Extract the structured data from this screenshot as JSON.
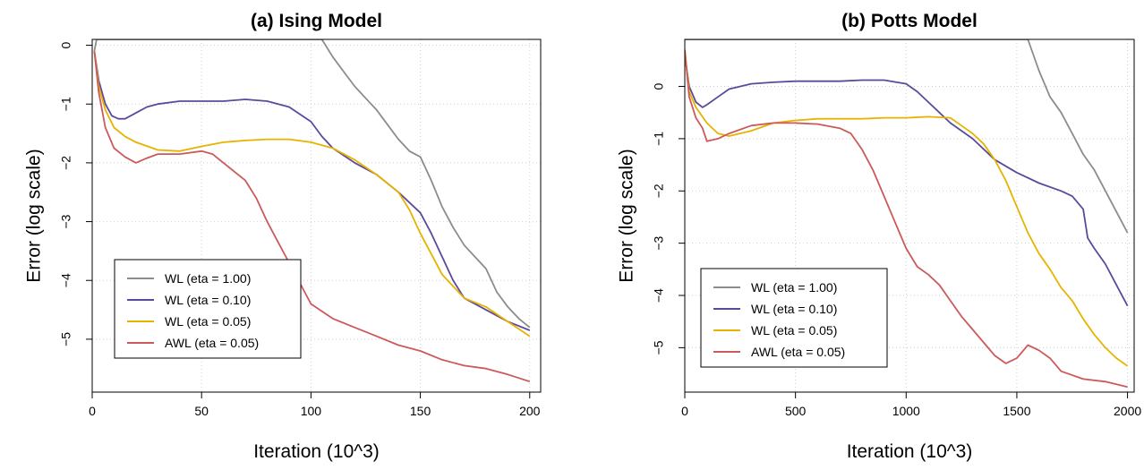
{
  "chart_data": [
    {
      "type": "line",
      "title": "(a) Ising Model",
      "xlabel": "Iteration (10^3)",
      "ylabel": "Error (log scale)",
      "xlim": [
        0,
        205
      ],
      "ylim": [
        -5.9,
        0.1
      ],
      "xticks": [
        0,
        50,
        100,
        150,
        200
      ],
      "yticks": [
        0,
        -1,
        -2,
        -3,
        -4,
        -5
      ],
      "grid": true,
      "legend_position": "bottom-left",
      "series": [
        {
          "name": "WL (eta = 1.00)",
          "color": "#8c8c8c",
          "x": [
            1,
            2,
            105,
            110,
            115,
            120,
            125,
            130,
            135,
            140,
            145,
            150,
            155,
            160,
            165,
            170,
            175,
            180,
            185,
            190,
            195,
            200
          ],
          "y": [
            -0.1,
            0.1,
            0.1,
            -0.2,
            -0.45,
            -0.7,
            -0.9,
            -1.1,
            -1.35,
            -1.6,
            -1.8,
            -1.9,
            -2.3,
            -2.75,
            -3.1,
            -3.4,
            -3.6,
            -3.8,
            -4.2,
            -4.45,
            -4.65,
            -4.8
          ]
        },
        {
          "name": "WL (eta = 0.10)",
          "color": "#5b4a9b",
          "x": [
            1,
            3,
            6,
            9,
            12,
            15,
            20,
            25,
            30,
            40,
            50,
            60,
            70,
            80,
            90,
            100,
            105,
            110,
            120,
            130,
            140,
            150,
            155,
            160,
            165,
            170,
            180,
            190,
            200
          ],
          "y": [
            -0.1,
            -0.6,
            -1.0,
            -1.2,
            -1.25,
            -1.25,
            -1.15,
            -1.05,
            -1.0,
            -0.95,
            -0.95,
            -0.95,
            -0.92,
            -0.95,
            -1.05,
            -1.3,
            -1.55,
            -1.75,
            -2.0,
            -2.2,
            -2.5,
            -2.85,
            -3.2,
            -3.6,
            -4.0,
            -4.3,
            -4.5,
            -4.7,
            -4.85
          ]
        },
        {
          "name": "WL (eta = 0.05)",
          "color": "#e7b300",
          "x": [
            1,
            3,
            6,
            10,
            15,
            20,
            30,
            40,
            50,
            60,
            70,
            80,
            90,
            100,
            110,
            120,
            130,
            140,
            145,
            150,
            155,
            160,
            165,
            170,
            180,
            190,
            200
          ],
          "y": [
            -0.1,
            -0.7,
            -1.1,
            -1.4,
            -1.55,
            -1.65,
            -1.78,
            -1.8,
            -1.72,
            -1.65,
            -1.62,
            -1.6,
            -1.6,
            -1.65,
            -1.75,
            -1.95,
            -2.2,
            -2.5,
            -2.8,
            -3.2,
            -3.55,
            -3.9,
            -4.1,
            -4.3,
            -4.45,
            -4.7,
            -4.95
          ]
        },
        {
          "name": "AWL (eta = 0.05)",
          "color": "#cc5a5a",
          "x": [
            1,
            3,
            6,
            10,
            15,
            20,
            25,
            30,
            40,
            50,
            55,
            60,
            65,
            70,
            75,
            80,
            85,
            90,
            95,
            100,
            110,
            120,
            130,
            140,
            150,
            160,
            170,
            180,
            190,
            200
          ],
          "y": [
            -0.1,
            -0.8,
            -1.4,
            -1.75,
            -1.9,
            -2.0,
            -1.92,
            -1.85,
            -1.85,
            -1.8,
            -1.85,
            -2.0,
            -2.15,
            -2.3,
            -2.6,
            -3.0,
            -3.35,
            -3.7,
            -4.05,
            -4.4,
            -4.65,
            -4.8,
            -4.95,
            -5.1,
            -5.2,
            -5.35,
            -5.45,
            -5.5,
            -5.6,
            -5.72
          ]
        }
      ]
    },
    {
      "type": "line",
      "title": "(b) Potts Model",
      "xlabel": "Iteration (10^3)",
      "ylabel": "Error (log scale)",
      "xlim": [
        0,
        2030
      ],
      "ylim": [
        -5.85,
        0.9
      ],
      "xticks": [
        0,
        500,
        1000,
        1500,
        2000
      ],
      "yticks": [
        0,
        -1,
        -2,
        -3,
        -4,
        -5
      ],
      "grid": true,
      "legend_position": "bottom-left",
      "series": [
        {
          "name": "WL (eta = 1.00)",
          "color": "#8c8c8c",
          "x": [
            0,
            1550,
            1600,
            1650,
            1700,
            1750,
            1800,
            1850,
            1900,
            1950,
            2000
          ],
          "y": [
            0.9,
            0.9,
            0.3,
            -0.2,
            -0.5,
            -0.9,
            -1.3,
            -1.6,
            -2.0,
            -2.4,
            -2.8
          ]
        },
        {
          "name": "WL (eta = 0.10)",
          "color": "#5b4a9b",
          "x": [
            0,
            20,
            50,
            80,
            100,
            150,
            200,
            300,
            400,
            500,
            600,
            700,
            800,
            900,
            1000,
            1050,
            1100,
            1150,
            1200,
            1300,
            1400,
            1500,
            1600,
            1700,
            1750,
            1800,
            1820,
            1850,
            1900,
            1950,
            2000
          ],
          "y": [
            0.6,
            0.0,
            -0.3,
            -0.4,
            -0.35,
            -0.2,
            -0.05,
            0.05,
            0.08,
            0.1,
            0.1,
            0.1,
            0.12,
            0.12,
            0.05,
            -0.1,
            -0.3,
            -0.5,
            -0.7,
            -1.0,
            -1.4,
            -1.65,
            -1.85,
            -2.0,
            -2.1,
            -2.35,
            -2.9,
            -3.1,
            -3.4,
            -3.8,
            -4.2
          ]
        },
        {
          "name": "WL (eta = 0.05)",
          "color": "#e7b300",
          "x": [
            0,
            20,
            50,
            100,
            150,
            200,
            300,
            400,
            500,
            600,
            700,
            800,
            900,
            1000,
            1100,
            1200,
            1250,
            1300,
            1350,
            1400,
            1450,
            1500,
            1550,
            1600,
            1650,
            1700,
            1750,
            1800,
            1850,
            1900,
            1950,
            2000
          ],
          "y": [
            0.7,
            -0.1,
            -0.4,
            -0.7,
            -0.9,
            -0.95,
            -0.85,
            -0.7,
            -0.65,
            -0.62,
            -0.62,
            -0.62,
            -0.6,
            -0.6,
            -0.58,
            -0.6,
            -0.75,
            -0.9,
            -1.1,
            -1.4,
            -1.8,
            -2.3,
            -2.8,
            -3.2,
            -3.5,
            -3.85,
            -4.1,
            -4.45,
            -4.75,
            -5.0,
            -5.2,
            -5.35
          ]
        },
        {
          "name": "AWL (eta = 0.05)",
          "color": "#cc5a5a",
          "x": [
            0,
            20,
            50,
            80,
            100,
            150,
            200,
            300,
            400,
            500,
            600,
            700,
            750,
            800,
            850,
            900,
            950,
            1000,
            1050,
            1100,
            1150,
            1200,
            1250,
            1300,
            1350,
            1400,
            1450,
            1500,
            1550,
            1600,
            1650,
            1700,
            1800,
            1900,
            2000
          ],
          "y": [
            0.7,
            -0.2,
            -0.6,
            -0.8,
            -1.05,
            -1.0,
            -0.9,
            -0.75,
            -0.7,
            -0.7,
            -0.72,
            -0.8,
            -0.9,
            -1.2,
            -1.6,
            -2.1,
            -2.6,
            -3.1,
            -3.45,
            -3.6,
            -3.8,
            -4.1,
            -4.4,
            -4.65,
            -4.9,
            -5.15,
            -5.3,
            -5.2,
            -4.95,
            -5.05,
            -5.2,
            -5.45,
            -5.6,
            -5.65,
            -5.75
          ]
        }
      ]
    }
  ]
}
